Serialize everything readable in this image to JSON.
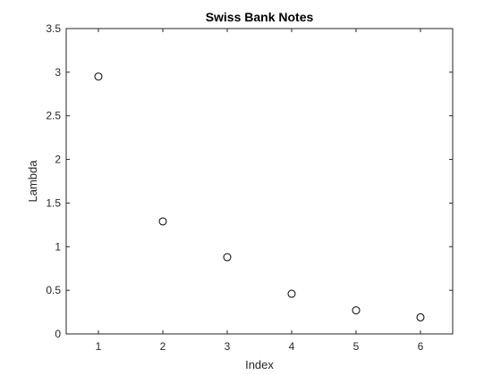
{
  "chart_data": {
    "type": "scatter",
    "title": "Swiss Bank Notes",
    "xlabel": "Index",
    "ylabel": "Lambda",
    "xlim": [
      0.5,
      6.5
    ],
    "ylim": [
      0,
      3.5
    ],
    "xticks": [
      "1",
      "2",
      "3",
      "4",
      "5",
      "6"
    ],
    "yticks": [
      "0",
      "0.5",
      "1",
      "1.5",
      "2",
      "2.5",
      "3",
      "3.5"
    ],
    "grid": false,
    "marker": "open-circle",
    "series": [
      {
        "x": [
          1,
          2,
          3,
          4,
          5,
          6
        ],
        "y": [
          2.95,
          1.29,
          0.88,
          0.46,
          0.27,
          0.19
        ]
      }
    ],
    "colors": {
      "marker": "#000000",
      "axes": "#262626"
    }
  }
}
